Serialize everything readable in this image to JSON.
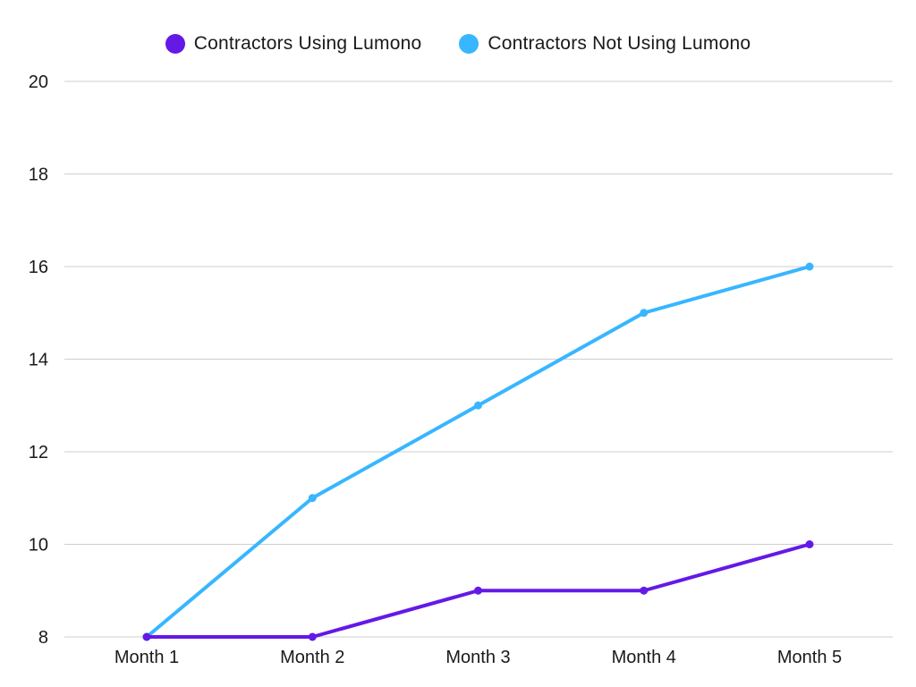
{
  "chart_data": {
    "type": "line",
    "categories": [
      "Month 1",
      "Month 2",
      "Month 3",
      "Month 4",
      "Month 5"
    ],
    "series": [
      {
        "name": "Contractors Using Lumono",
        "color": "#6419E6",
        "values": [
          8,
          8,
          9,
          9,
          10
        ]
      },
      {
        "name": "Contractors Not Using Lumono",
        "color": "#38B6FF",
        "values": [
          8,
          11,
          13,
          15,
          16
        ]
      }
    ],
    "yticks": [
      8,
      10,
      12,
      14,
      16,
      18,
      20
    ],
    "ylim": [
      8,
      20
    ],
    "grid": true,
    "legend_position": "top-center"
  }
}
